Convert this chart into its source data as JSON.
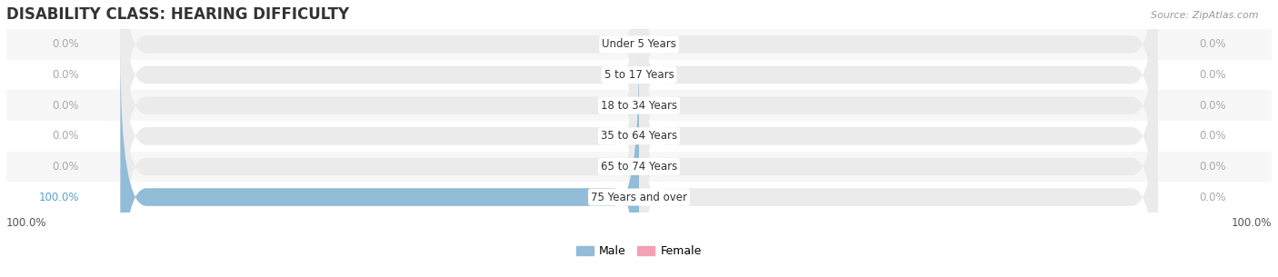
{
  "title": "DISABILITY CLASS: HEARING DIFFICULTY",
  "source_text": "Source: ZipAtlas.com",
  "categories": [
    "Under 5 Years",
    "5 to 17 Years",
    "18 to 34 Years",
    "35 to 64 Years",
    "65 to 74 Years",
    "75 Years and over"
  ],
  "male_values": [
    0.0,
    0.0,
    0.0,
    0.0,
    0.0,
    100.0
  ],
  "female_values": [
    0.0,
    0.0,
    0.0,
    0.0,
    0.0,
    0.0
  ],
  "male_color": "#92bcd8",
  "female_color": "#f4a0b5",
  "background_color": "#ffffff",
  "bar_bg_color_light": "#ebebeb",
  "bar_bg_color_dark": "#e0e0e0",
  "row_colors": [
    "#f7f7f7",
    "#ffffff",
    "#f7f7f7",
    "#ffffff",
    "#f7f7f7",
    "#ffffff"
  ],
  "label_color_zero": "#aaaaaa",
  "label_color_male_nonzero": "#5a9fd4",
  "label_color_female_nonzero": "#e87090",
  "title_color": "#333333",
  "source_color": "#999999",
  "bar_height": 0.58,
  "max_value": 100,
  "figsize": [
    14.06,
    3.05
  ],
  "dpi": 100
}
